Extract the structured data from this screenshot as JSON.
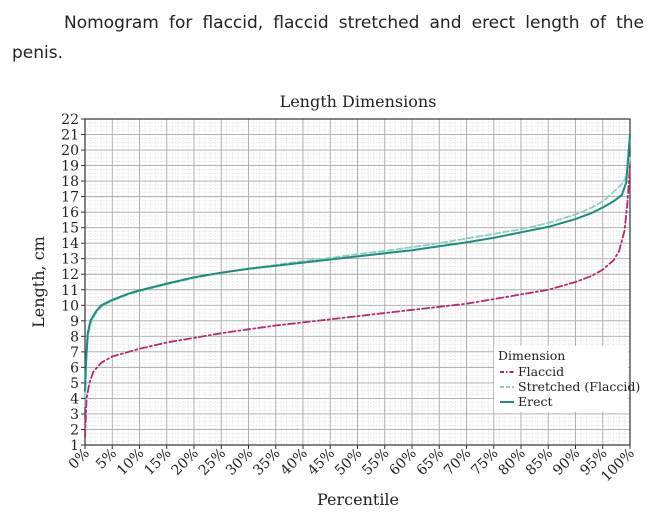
{
  "caption": "Nomogram for flaccid, flaccid stretched and erect length of the penis.",
  "chart_data": {
    "type": "line",
    "title": "Length Dimensions",
    "xlabel": "Percentile",
    "ylabel": "Length, cm",
    "xlim": [
      0,
      100
    ],
    "ylim": [
      1,
      22
    ],
    "x_ticks": [
      0,
      5,
      10,
      15,
      20,
      25,
      30,
      35,
      40,
      45,
      50,
      55,
      60,
      65,
      70,
      75,
      80,
      85,
      90,
      95,
      100
    ],
    "x_tick_labels": [
      "0%",
      "5%",
      "10%",
      "15%",
      "20%",
      "25%",
      "30%",
      "35%",
      "40%",
      "45%",
      "50%",
      "55%",
      "60%",
      "65%",
      "70%",
      "75%",
      "80%",
      "85%",
      "90%",
      "95%",
      "100%"
    ],
    "y_ticks": [
      1,
      2,
      3,
      4,
      5,
      6,
      7,
      8,
      9,
      10,
      11,
      12,
      13,
      14,
      15,
      16,
      17,
      18,
      19,
      20,
      21,
      22
    ],
    "grid": true,
    "legend_title": "Dimension",
    "legend_position": "bottom-right",
    "series": [
      {
        "name": "Flaccid",
        "color": "#b5296f",
        "style": "dashdot",
        "x": [
          0,
          0.3,
          0.8,
          1.5,
          3,
          5,
          8,
          10,
          15,
          20,
          25,
          30,
          35,
          40,
          45,
          50,
          55,
          60,
          65,
          70,
          75,
          80,
          85,
          90,
          93,
          95,
          97,
          98,
          99,
          99.5,
          100
        ],
        "y": [
          1.5,
          4.0,
          5.0,
          5.7,
          6.3,
          6.7,
          7.0,
          7.2,
          7.6,
          7.9,
          8.2,
          8.45,
          8.7,
          8.9,
          9.1,
          9.3,
          9.5,
          9.7,
          9.9,
          10.1,
          10.4,
          10.7,
          11.0,
          11.5,
          11.9,
          12.3,
          12.9,
          13.5,
          14.8,
          16.5,
          19.0
        ]
      },
      {
        "name": "Stretched (Flaccid)",
        "color": "#8ecfc5",
        "style": "dashed",
        "x": [
          0,
          0.2,
          0.5,
          1,
          2,
          3,
          5,
          8,
          10,
          15,
          20,
          25,
          30,
          35,
          40,
          45,
          50,
          55,
          60,
          65,
          70,
          75,
          80,
          85,
          90,
          93,
          95,
          97,
          98.5,
          99.3,
          100
        ],
        "y": [
          3.5,
          6.0,
          7.8,
          8.8,
          9.5,
          9.9,
          10.3,
          10.7,
          10.9,
          11.35,
          11.75,
          12.1,
          12.35,
          12.6,
          12.85,
          13.05,
          13.3,
          13.5,
          13.75,
          14.0,
          14.3,
          14.6,
          14.9,
          15.3,
          15.85,
          16.3,
          16.7,
          17.3,
          17.8,
          18.3,
          19.5
        ]
      },
      {
        "name": "Erect",
        "color": "#1e8c7e",
        "style": "solid",
        "x": [
          0,
          0.2,
          0.5,
          1,
          2,
          3,
          5,
          8,
          10,
          15,
          20,
          25,
          30,
          35,
          40,
          45,
          50,
          55,
          60,
          65,
          70,
          75,
          80,
          85,
          90,
          93,
          95,
          97,
          98.5,
          99.3,
          100
        ],
        "y": [
          4.5,
          6.5,
          8.2,
          9.0,
          9.6,
          10.0,
          10.35,
          10.75,
          10.95,
          11.4,
          11.8,
          12.1,
          12.35,
          12.55,
          12.75,
          12.95,
          13.15,
          13.35,
          13.55,
          13.8,
          14.05,
          14.35,
          14.7,
          15.05,
          15.55,
          15.95,
          16.3,
          16.7,
          17.1,
          17.9,
          21.0
        ]
      }
    ]
  }
}
